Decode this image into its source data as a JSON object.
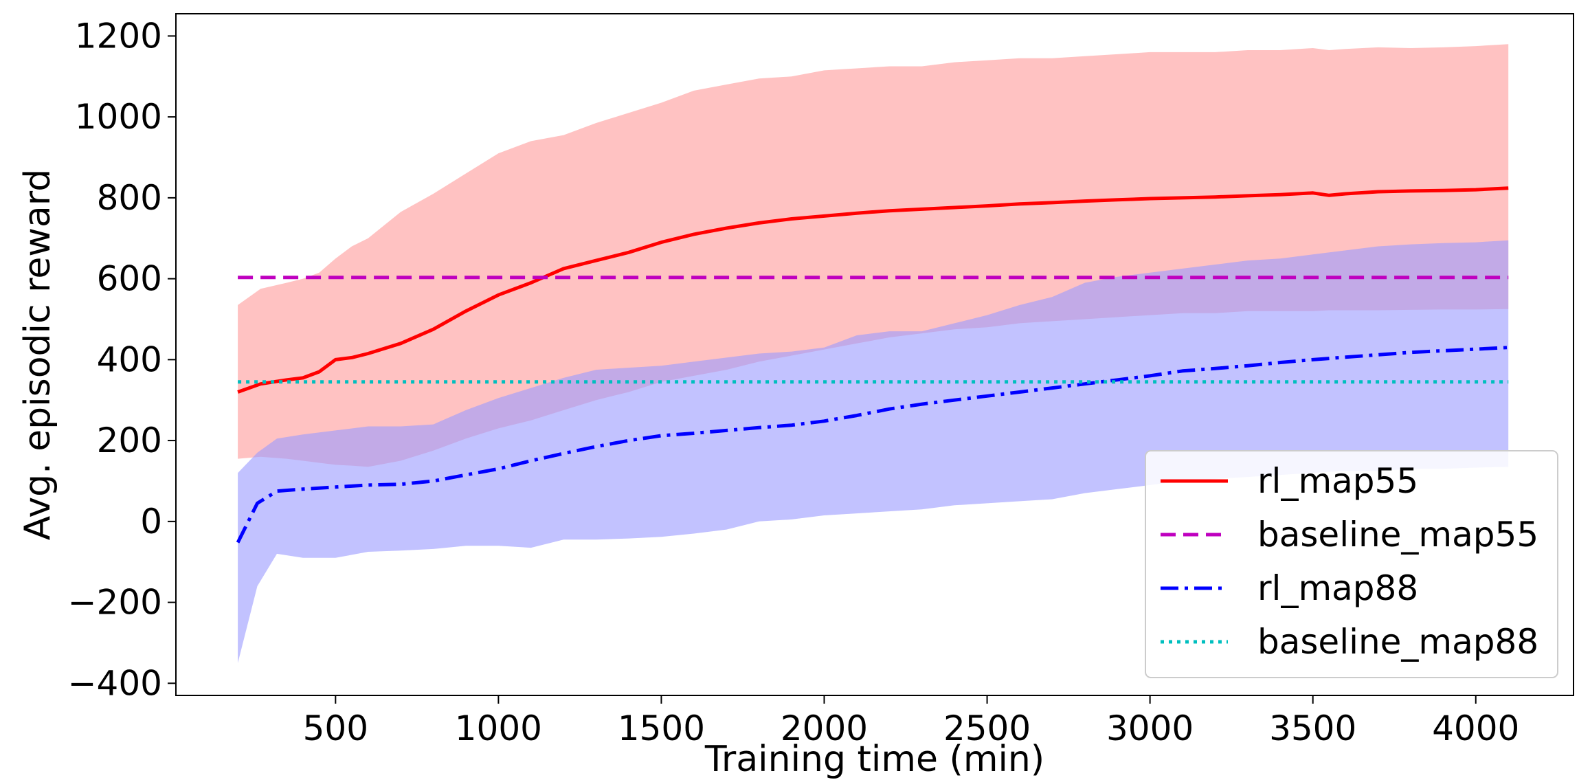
{
  "chart_data": {
    "type": "line",
    "xlabel": "Training time (min)",
    "ylabel": "Avg. episodic reward",
    "xlim": [
      10,
      4300
    ],
    "ylim": [
      -430,
      1255
    ],
    "xticks": [
      500,
      1000,
      1500,
      2000,
      2500,
      3000,
      3500,
      4000
    ],
    "yticks": [
      -400,
      -200,
      0,
      200,
      400,
      600,
      800,
      1000,
      1200
    ],
    "grid": false,
    "legend_position": "lower-right",
    "series": [
      {
        "name": "rl_map55",
        "color": "#ff0000",
        "dash": "solid",
        "band_color": "#ff9999",
        "x": [
          200,
          270,
          350,
          400,
          450,
          500,
          550,
          600,
          700,
          800,
          900,
          1000,
          1100,
          1200,
          1300,
          1400,
          1500,
          1600,
          1700,
          1800,
          1900,
          2000,
          2100,
          2200,
          2300,
          2400,
          2500,
          2600,
          2700,
          2800,
          2900,
          3000,
          3100,
          3200,
          3300,
          3400,
          3500,
          3550,
          3600,
          3700,
          3800,
          3900,
          4000,
          4100
        ],
        "y": [
          320,
          340,
          350,
          355,
          370,
          400,
          405,
          415,
          440,
          475,
          520,
          560,
          590,
          625,
          645,
          665,
          690,
          710,
          725,
          738,
          748,
          755,
          762,
          768,
          772,
          776,
          780,
          785,
          788,
          792,
          795,
          798,
          800,
          802,
          805,
          808,
          812,
          806,
          810,
          815,
          817,
          818,
          820,
          824
        ],
        "band_upper": [
          535,
          575,
          590,
          600,
          615,
          650,
          680,
          700,
          765,
          810,
          860,
          910,
          940,
          955,
          985,
          1010,
          1035,
          1065,
          1080,
          1095,
          1100,
          1115,
          1120,
          1125,
          1125,
          1135,
          1140,
          1145,
          1145,
          1150,
          1155,
          1160,
          1160,
          1160,
          1165,
          1165,
          1170,
          1165,
          1168,
          1172,
          1170,
          1172,
          1175,
          1180
        ],
        "band_lower": [
          155,
          160,
          155,
          150,
          145,
          140,
          138,
          135,
          150,
          175,
          205,
          230,
          250,
          275,
          300,
          320,
          345,
          360,
          375,
          395,
          410,
          425,
          440,
          455,
          465,
          475,
          480,
          490,
          495,
          500,
          505,
          510,
          515,
          515,
          520,
          520,
          520,
          522,
          522,
          522,
          523,
          524,
          524,
          525
        ]
      },
      {
        "name": "baseline_map55",
        "color": "#bf00bf",
        "dash": "dashed",
        "x": [
          200,
          4100
        ],
        "y": [
          603,
          603
        ]
      },
      {
        "name": "rl_map88",
        "color": "#0000ff",
        "dash": "dashdot",
        "band_color": "#9999ff",
        "x": [
          200,
          260,
          320,
          400,
          500,
          600,
          700,
          800,
          900,
          1000,
          1100,
          1200,
          1300,
          1400,
          1500,
          1600,
          1700,
          1800,
          1900,
          2000,
          2100,
          2200,
          2300,
          2400,
          2500,
          2600,
          2700,
          2800,
          2900,
          3000,
          3100,
          3200,
          3300,
          3400,
          3500,
          3600,
          3700,
          3800,
          3900,
          4000,
          4100
        ],
        "y": [
          -52,
          45,
          75,
          80,
          85,
          90,
          92,
          100,
          115,
          130,
          150,
          168,
          185,
          200,
          212,
          218,
          225,
          232,
          238,
          248,
          262,
          278,
          290,
          300,
          310,
          320,
          330,
          340,
          350,
          360,
          372,
          378,
          385,
          393,
          400,
          406,
          412,
          418,
          422,
          426,
          430
        ],
        "band_upper": [
          120,
          170,
          205,
          215,
          225,
          235,
          235,
          240,
          275,
          305,
          330,
          355,
          375,
          380,
          385,
          395,
          405,
          415,
          420,
          430,
          460,
          470,
          470,
          490,
          510,
          535,
          555,
          590,
          605,
          615,
          625,
          635,
          645,
          650,
          660,
          670,
          680,
          685,
          688,
          690,
          695
        ],
        "band_lower": [
          -350,
          -160,
          -80,
          -90,
          -90,
          -75,
          -72,
          -68,
          -60,
          -60,
          -65,
          -45,
          -45,
          -42,
          -38,
          -30,
          -20,
          0,
          5,
          15,
          20,
          25,
          30,
          40,
          45,
          50,
          55,
          70,
          80,
          90,
          100,
          105,
          110,
          115,
          120,
          125,
          125,
          130,
          130,
          133,
          135
        ]
      },
      {
        "name": "baseline_map88",
        "color": "#00bfbf",
        "dash": "dotted",
        "x": [
          200,
          4100
        ],
        "y": [
          345,
          345
        ]
      }
    ]
  }
}
